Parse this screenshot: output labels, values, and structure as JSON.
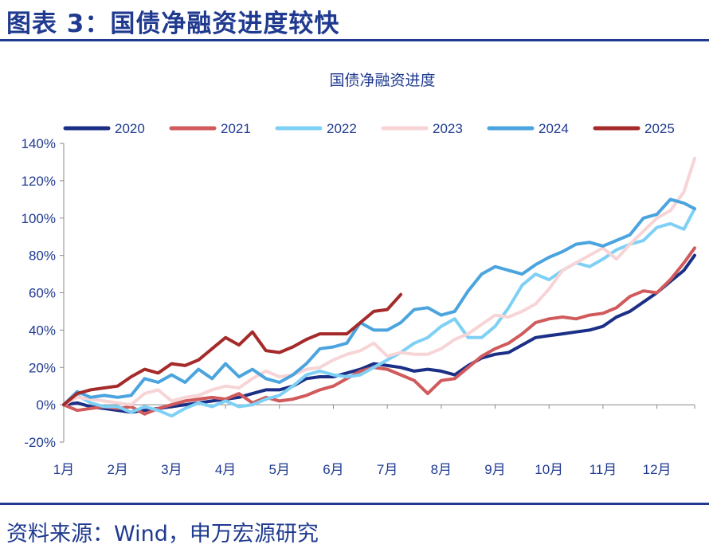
{
  "header": {
    "title": "图表 3：国债净融资进度较快"
  },
  "source": {
    "text": "资料来源：Wind，申万宏源研究"
  },
  "chart_data": {
    "type": "line",
    "title": "国债净融资进度",
    "xlabel": "",
    "ylabel": "",
    "x_tick_labels": [
      "1月",
      "2月",
      "3月",
      "4月",
      "5月",
      "6月",
      "7月",
      "8月",
      "9月",
      "10月",
      "11月",
      "12月"
    ],
    "xlim": [
      1,
      12.7
    ],
    "ylim": [
      -20,
      140
    ],
    "y_ticks": [
      -20,
      0,
      20,
      40,
      60,
      80,
      100,
      120,
      140
    ],
    "y_tick_labels": [
      "-20%",
      "0%",
      "20%",
      "40%",
      "60%",
      "80%",
      "100%",
      "120%",
      "140%"
    ],
    "y_unit": "%",
    "grid": false,
    "legend_position": "top",
    "series": [
      {
        "name": "2020",
        "color": "#1c2f86",
        "x": [
          1,
          1.25,
          1.5,
          1.75,
          2,
          2.25,
          2.5,
          2.75,
          3,
          3.25,
          3.5,
          3.75,
          4,
          4.25,
          4.5,
          4.75,
          5,
          5.25,
          5.5,
          5.75,
          6,
          6.25,
          6.5,
          6.75,
          7,
          7.25,
          7.5,
          7.75,
          8,
          8.25,
          8.5,
          8.75,
          9,
          9.25,
          9.5,
          9.75,
          10,
          10.25,
          10.5,
          10.75,
          11,
          11.25,
          11.5,
          11.75,
          12,
          12.25,
          12.5,
          12.7
        ],
        "y": [
          0,
          1,
          -1,
          -2,
          -3,
          -4,
          -3,
          -2,
          -1,
          0,
          1,
          2,
          3,
          4,
          6,
          8,
          8,
          10,
          14,
          15,
          15,
          17,
          19,
          22,
          21,
          20,
          18,
          19,
          18,
          16,
          21,
          25,
          27,
          28,
          32,
          36,
          37,
          38,
          39,
          40,
          42,
          47,
          50,
          55,
          60,
          66,
          72,
          80
        ]
      },
      {
        "name": "2021",
        "color": "#d05a5c",
        "x": [
          1,
          1.25,
          1.5,
          1.75,
          2,
          2.25,
          2.5,
          2.75,
          3,
          3.25,
          3.5,
          3.75,
          4,
          4.25,
          4.5,
          4.75,
          5,
          5.25,
          5.5,
          5.75,
          6,
          6.25,
          6.5,
          6.75,
          7,
          7.25,
          7.5,
          7.75,
          8,
          8.25,
          8.5,
          8.75,
          9,
          9.25,
          9.5,
          9.75,
          10,
          10.25,
          10.5,
          10.75,
          11,
          11.25,
          11.5,
          11.75,
          12,
          12.25,
          12.5,
          12.7
        ],
        "y": [
          0,
          -3,
          -2,
          -1,
          -2,
          -1,
          -5,
          -2,
          0,
          2,
          3,
          4,
          3,
          6,
          1,
          4,
          2,
          3,
          5,
          8,
          10,
          14,
          18,
          20,
          19,
          16,
          13,
          6,
          13,
          14,
          20,
          26,
          30,
          33,
          38,
          44,
          46,
          47,
          46,
          48,
          49,
          52,
          58,
          61,
          60,
          67,
          76,
          84
        ]
      },
      {
        "name": "2022",
        "color": "#7fd0f5",
        "x": [
          1,
          1.25,
          1.5,
          1.75,
          2,
          2.25,
          2.5,
          2.75,
          3,
          3.25,
          3.5,
          3.75,
          4,
          4.25,
          4.5,
          4.75,
          5,
          5.25,
          5.5,
          5.75,
          6,
          6.25,
          6.5,
          6.75,
          7,
          7.25,
          7.5,
          7.75,
          8,
          8.25,
          8.5,
          8.75,
          9,
          9.25,
          9.5,
          9.75,
          10,
          10.25,
          10.5,
          10.75,
          11,
          11.25,
          11.5,
          11.75,
          12,
          12.25,
          12.5,
          12.7
        ],
        "y": [
          0,
          5,
          1,
          -1,
          -1,
          -4,
          -1,
          -3,
          -6,
          -2,
          1,
          -1,
          2,
          -1,
          0,
          3,
          5,
          10,
          16,
          18,
          16,
          15,
          16,
          20,
          24,
          28,
          33,
          36,
          42,
          46,
          36,
          36,
          42,
          52,
          64,
          70,
          67,
          72,
          76,
          74,
          78,
          83,
          86,
          88,
          95,
          97,
          94,
          105
        ]
      },
      {
        "name": "2023",
        "color": "#f7d4d6",
        "x": [
          1,
          1.25,
          1.5,
          1.75,
          2,
          2.25,
          2.5,
          2.75,
          3,
          3.25,
          3.5,
          3.75,
          4,
          4.25,
          4.5,
          4.75,
          5,
          5.25,
          5.5,
          5.75,
          6,
          6.25,
          6.5,
          6.75,
          7,
          7.25,
          7.5,
          7.75,
          8,
          8.25,
          8.5,
          8.75,
          9,
          9.25,
          9.5,
          9.75,
          10,
          10.25,
          10.5,
          10.75,
          11,
          11.25,
          11.5,
          11.75,
          12,
          12.25,
          12.5,
          12.7
        ],
        "y": [
          0,
          4,
          3,
          2,
          1,
          0,
          6,
          8,
          2,
          4,
          5,
          8,
          10,
          9,
          14,
          18,
          15,
          16,
          19,
          20,
          24,
          27,
          29,
          33,
          26,
          28,
          27,
          27,
          30,
          35,
          38,
          43,
          48,
          47,
          50,
          54,
          62,
          72,
          76,
          80,
          84,
          78,
          86,
          93,
          100,
          104,
          114,
          132
        ]
      },
      {
        "name": "2024",
        "color": "#4ba4de",
        "x": [
          1,
          1.25,
          1.5,
          1.75,
          2,
          2.25,
          2.5,
          2.75,
          3,
          3.25,
          3.5,
          3.75,
          4,
          4.25,
          4.5,
          4.75,
          5,
          5.25,
          5.5,
          5.75,
          6,
          6.25,
          6.5,
          6.75,
          7,
          7.25,
          7.5,
          7.75,
          8,
          8.25,
          8.5,
          8.75,
          9,
          9.25,
          9.5,
          9.75,
          10,
          10.25,
          10.5,
          10.75,
          11,
          11.25,
          11.5,
          11.75,
          12,
          12.25,
          12.5,
          12.7
        ],
        "y": [
          0,
          7,
          4,
          5,
          4,
          5,
          14,
          12,
          16,
          12,
          19,
          14,
          22,
          15,
          19,
          14,
          12,
          16,
          22,
          30,
          31,
          33,
          44,
          40,
          40,
          44,
          51,
          52,
          48,
          50,
          61,
          70,
          74,
          72,
          70,
          75,
          79,
          82,
          86,
          87,
          85,
          88,
          91,
          100,
          102,
          110,
          108,
          105
        ]
      },
      {
        "name": "2025",
        "color": "#a52a2a",
        "x": [
          1,
          1.25,
          1.5,
          1.75,
          2,
          2.25,
          2.5,
          2.75,
          3,
          3.25,
          3.5,
          3.75,
          4,
          4.25,
          4.5,
          4.75,
          5,
          5.25,
          5.5,
          5.75,
          6,
          6.25,
          6.5,
          6.75,
          7,
          7.25
        ],
        "y": [
          0,
          6,
          8,
          9,
          10,
          15,
          19,
          17,
          22,
          21,
          24,
          30,
          36,
          32,
          39,
          29,
          28,
          31,
          35,
          38,
          38,
          38,
          44,
          50,
          51,
          59
        ]
      }
    ]
  }
}
